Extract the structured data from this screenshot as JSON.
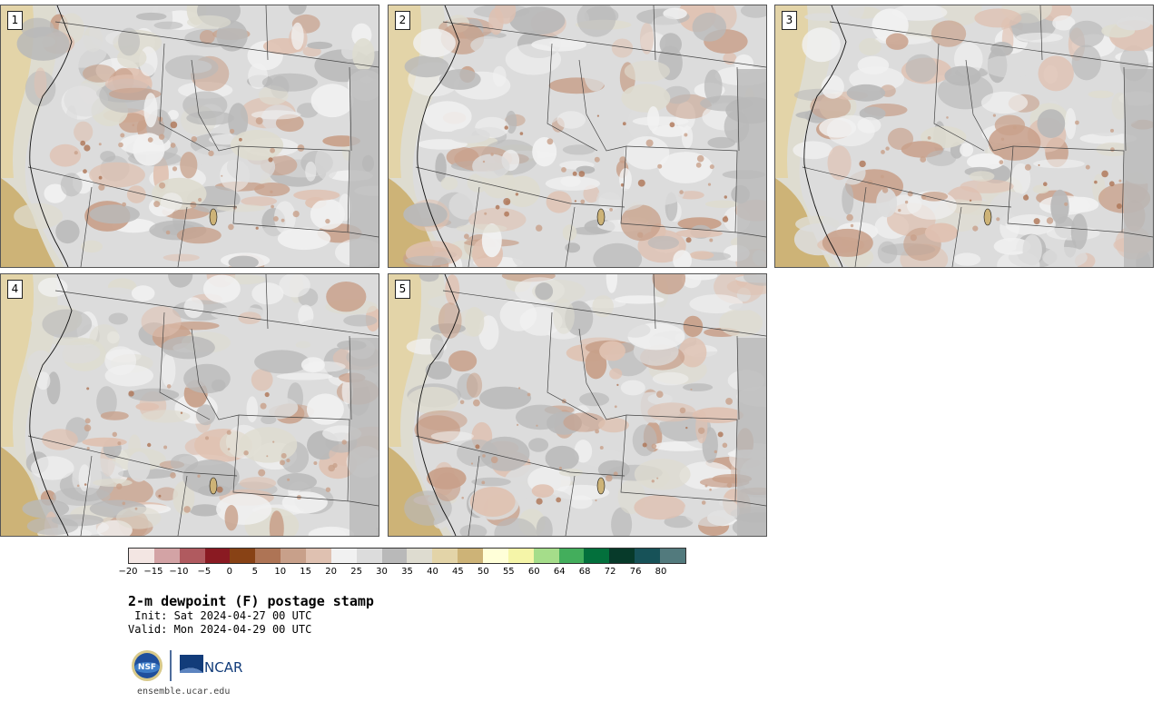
{
  "panels": [
    {
      "label": "1"
    },
    {
      "label": "2"
    },
    {
      "label": "3"
    },
    {
      "label": "4"
    },
    {
      "label": "5"
    }
  ],
  "colorbar": {
    "colors": [
      "#f3e6e3",
      "#d3a3a5",
      "#b05a5f",
      "#8a1a22",
      "#884215",
      "#ae7455",
      "#c8a08a",
      "#dfc1b1",
      "#f1f1f1",
      "#dcdcdc",
      "#b9b9b9",
      "#dedcd0",
      "#e3d4a8",
      "#cdb377",
      "#ffffd8",
      "#f5f5a8",
      "#a5dd8a",
      "#43ae5c",
      "#03703c",
      "#073a2a",
      "#175258",
      "#527a7d"
    ],
    "ticks": [
      "−20",
      "−15",
      "−10",
      "−5",
      "0",
      "5",
      "10",
      "15",
      "20",
      "25",
      "30",
      "35",
      "40",
      "45",
      "50",
      "55",
      "60",
      "64",
      "68",
      "72",
      "76",
      "80"
    ]
  },
  "title": "2-m dewpoint (F) postage stamp",
  "init": " Init: Sat 2024-04-27 00 UTC",
  "valid": "Valid: Mon 2024-04-29 00 UTC",
  "logos": {
    "nsf": "NSF",
    "ncar": "NCAR"
  },
  "url": "ensemble.ucar.edu"
}
